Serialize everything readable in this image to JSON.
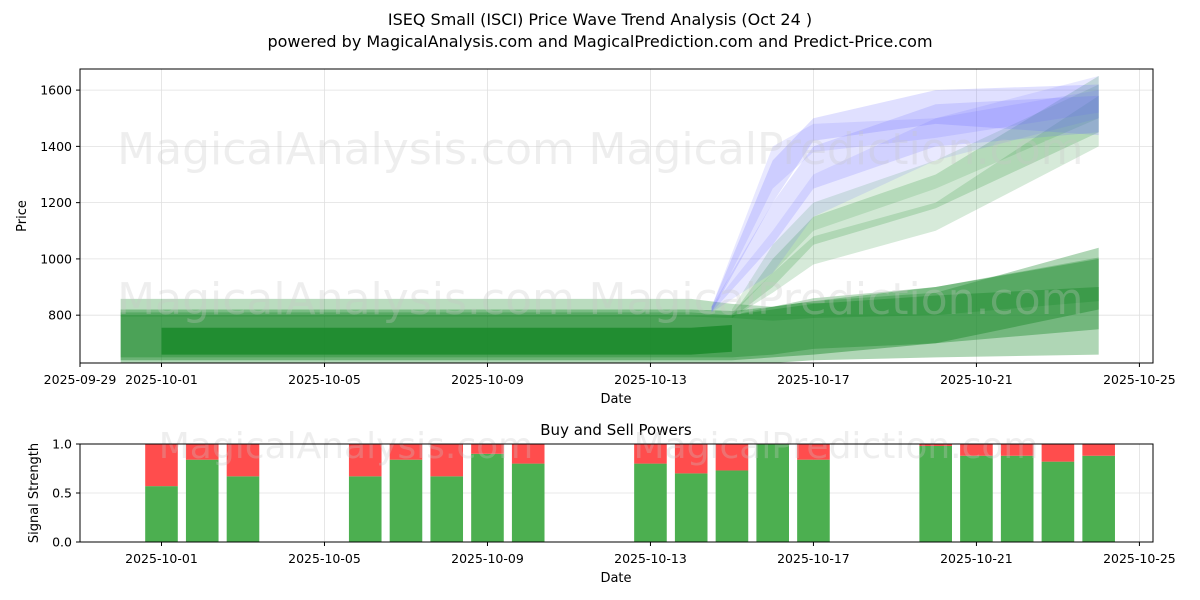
{
  "title": "ISEQ Small (ISCI) Price Wave Trend Analysis (Oct 24 )",
  "subtitle": "powered by MagicalAnalysis.com and MagicalPrediction.com and Predict-Price.com",
  "watermarks": [
    "MagicalAnalysis.com",
    "MagicalPrediction.com"
  ],
  "colors": {
    "green": "#1a8a2a",
    "blue": "#6666ff",
    "buy": "#4caf50",
    "sell": "#ff4d4d"
  },
  "chart_data": [
    {
      "type": "area",
      "title": "",
      "xlabel": "Date",
      "ylabel": "Price",
      "ylim": [
        630,
        1675
      ],
      "xlim": [
        "2025-09-29T00:00",
        "2025-10-25T08:00"
      ],
      "grid": true,
      "x_ticks": [
        "2025-09-29",
        "2025-10-01",
        "2025-10-05",
        "2025-10-09",
        "2025-10-13",
        "2025-10-17",
        "2025-10-21",
        "2025-10-25"
      ],
      "y_ticks": [
        800,
        1000,
        1200,
        1400,
        1600
      ],
      "series": [
        {
          "name": "wave-green-1",
          "color": "green",
          "opacity": 0.3,
          "x": [
            "2025-09-30",
            "2025-10-14",
            "2025-10-15",
            "2025-10-16",
            "2025-10-17",
            "2025-10-20",
            "2025-10-24"
          ],
          "upper": [
            858,
            858,
            840,
            830,
            860,
            900,
            1005
          ],
          "lower": [
            795,
            795,
            790,
            780,
            790,
            800,
            850
          ]
        },
        {
          "name": "wave-green-2",
          "color": "green",
          "opacity": 0.35,
          "x": [
            "2025-09-30",
            "2025-10-14",
            "2025-10-15",
            "2025-10-16",
            "2025-10-17",
            "2025-10-20",
            "2025-10-24"
          ],
          "upper": [
            810,
            810,
            800,
            830,
            850,
            880,
            1040
          ],
          "lower": [
            630,
            630,
            630,
            630,
            640,
            650,
            660
          ]
        },
        {
          "name": "wave-green-3",
          "color": "green",
          "opacity": 0.4,
          "x": [
            "2025-09-30",
            "2025-10-14",
            "2025-10-15",
            "2025-10-16",
            "2025-10-17",
            "2025-10-20",
            "2025-10-24"
          ],
          "upper": [
            820,
            820,
            815,
            830,
            850,
            900,
            1000
          ],
          "lower": [
            650,
            650,
            650,
            660,
            680,
            700,
            750
          ]
        },
        {
          "name": "wave-green-4",
          "color": "green",
          "opacity": 0.45,
          "x": [
            "2025-09-30",
            "2025-10-14",
            "2025-10-15",
            "2025-10-16",
            "2025-10-17",
            "2025-10-20",
            "2025-10-24"
          ],
          "upper": [
            800,
            800,
            800,
            820,
            840,
            870,
            900
          ],
          "lower": [
            640,
            640,
            640,
            650,
            660,
            700,
            820
          ]
        },
        {
          "name": "wave-green-5",
          "color": "green",
          "opacity": 0.85,
          "x": [
            "2025-10-01",
            "2025-10-14",
            "2025-10-15"
          ],
          "upper": [
            755,
            755,
            765
          ],
          "lower": [
            660,
            660,
            670
          ]
        },
        {
          "name": "wave-green-light-1",
          "color": "green",
          "opacity": 0.2,
          "x": [
            "2025-10-15",
            "2025-10-16",
            "2025-10-17",
            "2025-10-20",
            "2025-10-24"
          ],
          "upper": [
            800,
            1000,
            1150,
            1300,
            1650
          ],
          "lower": [
            790,
            900,
            1050,
            1180,
            1450
          ]
        },
        {
          "name": "wave-green-light-2",
          "color": "green",
          "opacity": 0.18,
          "x": [
            "2025-10-15",
            "2025-10-16",
            "2025-10-17",
            "2025-10-20",
            "2025-10-24"
          ],
          "upper": [
            810,
            950,
            1080,
            1200,
            1580
          ],
          "lower": [
            790,
            880,
            980,
            1100,
            1400
          ]
        },
        {
          "name": "wave-green-light-3",
          "color": "green",
          "opacity": 0.15,
          "x": [
            "2025-10-15",
            "2025-10-16",
            "2025-10-17",
            "2025-10-20",
            "2025-10-24"
          ],
          "upper": [
            820,
            1050,
            1200,
            1350,
            1620
          ],
          "lower": [
            800,
            950,
            1100,
            1250,
            1500
          ]
        },
        {
          "name": "wave-blue-1",
          "color": "blue",
          "opacity": 0.2,
          "x": [
            "2025-10-14T12:00",
            "2025-10-16",
            "2025-10-17",
            "2025-10-20",
            "2025-10-24"
          ],
          "upper": [
            830,
            1350,
            1500,
            1600,
            1620
          ],
          "lower": [
            810,
            1200,
            1420,
            1480,
            1440
          ]
        },
        {
          "name": "wave-blue-2",
          "color": "blue",
          "opacity": 0.18,
          "x": [
            "2025-10-14T12:00",
            "2025-10-16",
            "2025-10-17",
            "2025-10-20",
            "2025-10-24"
          ],
          "upper": [
            830,
            1200,
            1400,
            1550,
            1580
          ],
          "lower": [
            810,
            1050,
            1250,
            1400,
            1450
          ]
        },
        {
          "name": "wave-blue-3",
          "color": "blue",
          "opacity": 0.15,
          "x": [
            "2025-10-14T12:00",
            "2025-10-16",
            "2025-10-17",
            "2025-10-20",
            "2025-10-24"
          ],
          "upper": [
            830,
            1400,
            1480,
            1500,
            1600
          ],
          "lower": [
            810,
            1250,
            1380,
            1430,
            1520
          ]
        },
        {
          "name": "wave-blue-4",
          "color": "blue",
          "opacity": 0.14,
          "x": [
            "2025-10-14T12:00",
            "2025-10-16",
            "2025-10-17",
            "2025-10-20",
            "2025-10-24"
          ],
          "upper": [
            830,
            1100,
            1300,
            1500,
            1650
          ],
          "lower": [
            810,
            950,
            1150,
            1350,
            1500
          ]
        }
      ]
    },
    {
      "type": "bar",
      "title": "Buy and Sell Powers",
      "xlabel": "Date",
      "ylabel": "Signal Strength",
      "ylim": [
        0,
        1
      ],
      "xlim": [
        "2025-09-29T00:00",
        "2025-10-25T08:00"
      ],
      "grid": true,
      "x_ticks": [
        "2025-10-01",
        "2025-10-05",
        "2025-10-09",
        "2025-10-13",
        "2025-10-17",
        "2025-10-21",
        "2025-10-25"
      ],
      "y_ticks": [
        "0.0",
        "0.5",
        "1.0"
      ],
      "categories": [
        "2025-10-01",
        "2025-10-02",
        "2025-10-03",
        "2025-10-06",
        "2025-10-07",
        "2025-10-08",
        "2025-10-09",
        "2025-10-10",
        "2025-10-13",
        "2025-10-14",
        "2025-10-15",
        "2025-10-16",
        "2025-10-17",
        "2025-10-20",
        "2025-10-21",
        "2025-10-22",
        "2025-10-23",
        "2025-10-24"
      ],
      "series": [
        {
          "name": "Buy",
          "color": "buy",
          "values": [
            0.57,
            0.84,
            0.67,
            0.67,
            0.84,
            0.67,
            0.9,
            0.8,
            0.8,
            0.7,
            0.73,
            1.0,
            0.84,
            0.98,
            0.88,
            0.88,
            0.82,
            0.88
          ]
        },
        {
          "name": "Sell",
          "color": "sell",
          "values": [
            0.43,
            0.16,
            0.33,
            0.33,
            0.16,
            0.33,
            0.1,
            0.2,
            0.2,
            0.3,
            0.27,
            0.0,
            0.16,
            0.02,
            0.12,
            0.12,
            0.18,
            0.12
          ]
        }
      ]
    }
  ]
}
